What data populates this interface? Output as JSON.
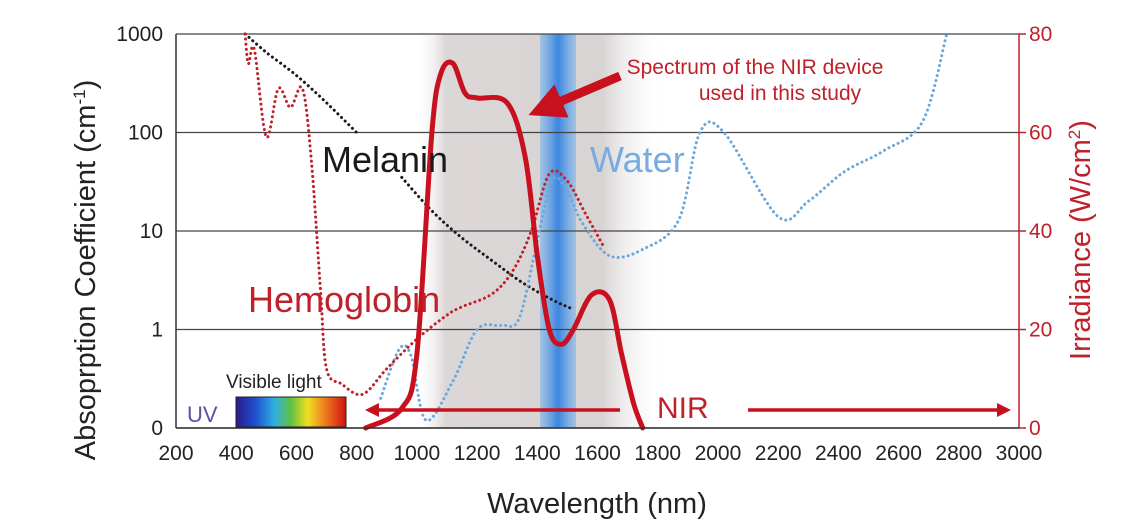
{
  "chart_data": {
    "type": "line",
    "xlabel": "Wavelength (nm)",
    "ylabel": "Absoprption Coefficient (cm",
    "ylabel_sup": "-1",
    "ylabel_end": ")",
    "y2label": "Irradiance (W/cm",
    "y2label_sup": "2",
    "y2label_end": ")",
    "xlim": [
      200,
      3000
    ],
    "x_ticks": [
      "200",
      "400",
      "600",
      "800",
      "1000",
      "1200",
      "1400",
      "1600",
      "1800",
      "2000",
      "2200",
      "2400",
      "2600",
      "2800",
      "3000"
    ],
    "y_scale": "log",
    "y_ticks": [
      "0",
      "1",
      "10",
      "100",
      "1000"
    ],
    "y2lim": [
      0,
      80
    ],
    "y2_ticks": [
      "0",
      "20",
      "40",
      "60",
      "80"
    ],
    "grid": "horizontal",
    "series": [
      {
        "name": "Melanin",
        "color": "#1a1a1a",
        "style": "dotted",
        "points": [
          [
            430,
            1000
          ],
          [
            500,
            650
          ],
          [
            600,
            380
          ],
          [
            700,
            200
          ],
          [
            800,
            100
          ]
        ],
        "points2": [
          [
            950,
            35
          ],
          [
            1050,
            16
          ],
          [
            1150,
            8.5
          ],
          [
            1250,
            5
          ],
          [
            1350,
            3
          ],
          [
            1450,
            2
          ],
          [
            1520,
            1.6
          ]
        ]
      },
      {
        "name": "Water",
        "color": "#6aa8dc",
        "style": "dotted",
        "points": [
          [
            880,
            0.2
          ],
          [
            940,
            0.62
          ],
          [
            980,
            0.55
          ],
          [
            1030,
            0.12
          ],
          [
            1120,
            0.3
          ],
          [
            1200,
            1.0
          ],
          [
            1280,
            1.1
          ],
          [
            1340,
            1.3
          ],
          [
            1400,
            8
          ],
          [
            1450,
            33
          ],
          [
            1500,
            25
          ],
          [
            1550,
            12
          ],
          [
            1640,
            5.6
          ],
          [
            1750,
            6.5
          ],
          [
            1870,
            13
          ],
          [
            1940,
            100
          ],
          [
            2020,
            100
          ],
          [
            2200,
            14
          ],
          [
            2300,
            20
          ],
          [
            2420,
            40
          ],
          [
            2550,
            65
          ],
          [
            2680,
            130
          ],
          [
            2760,
            1000
          ]
        ]
      },
      {
        "name": "Hemoglobin",
        "color": "#c0202a",
        "style": "dotted",
        "points": [
          [
            430,
            1000
          ],
          [
            440,
            500
          ],
          [
            460,
            700
          ],
          [
            500,
            90
          ],
          [
            540,
            280
          ],
          [
            580,
            180
          ],
          [
            620,
            280
          ],
          [
            650,
            50
          ],
          [
            680,
            2.5
          ],
          [
            700,
            0.4
          ],
          [
            750,
            0.28
          ],
          [
            820,
            0.22
          ],
          [
            900,
            0.4
          ],
          [
            1000,
            0.8
          ],
          [
            1100,
            1.4
          ],
          [
            1150,
            1.7
          ],
          [
            1250,
            2.3
          ],
          [
            1320,
            4
          ],
          [
            1380,
            10
          ],
          [
            1440,
            38
          ],
          [
            1500,
            32
          ],
          [
            1560,
            15
          ],
          [
            1620,
            7
          ]
        ]
      },
      {
        "name": "Spectrum of the NIR device used in this study",
        "color": "#c8101e",
        "style": "solid",
        "axis": "right",
        "points": [
          [
            830,
            0
          ],
          [
            950,
            4
          ],
          [
            1000,
            15
          ],
          [
            1050,
            60
          ],
          [
            1080,
            72
          ],
          [
            1120,
            74
          ],
          [
            1160,
            68
          ],
          [
            1200,
            67
          ],
          [
            1300,
            66
          ],
          [
            1360,
            55
          ],
          [
            1400,
            35
          ],
          [
            1440,
            20
          ],
          [
            1480,
            17
          ],
          [
            1520,
            20
          ],
          [
            1580,
            27
          ],
          [
            1640,
            26
          ],
          [
            1680,
            15
          ],
          [
            1720,
            5
          ],
          [
            1750,
            0
          ]
        ]
      }
    ],
    "labels": {
      "melanin": "Melanin",
      "water": "Water",
      "hemoglobin": "Hemoglobin",
      "spectrum_line1": "Spectrum of the NIR device",
      "spectrum_line2": "used in this study",
      "visible": "Visible light",
      "uv": "UV",
      "nir": "NIR"
    },
    "colors": {
      "grid": "#444444",
      "nir_band": "#cfc8c8",
      "water_peak_band": "#4a90e0",
      "red": "#c8101e"
    }
  }
}
